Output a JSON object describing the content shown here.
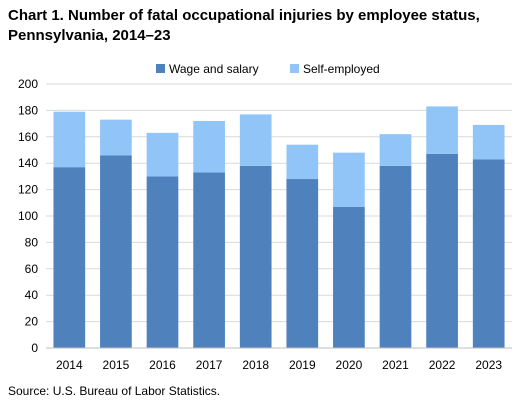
{
  "colors": {
    "wage": "#4f81bd",
    "self": "#92c5f7",
    "grid": "#d9d9d9"
  },
  "source": "Source: U.S. Bureau of Labor Statistics.",
  "chart_data": {
    "type": "bar",
    "stacked": true,
    "title": "Chart 1. Number of fatal occupational injuries by employee status, Pennsylvania, 2014–23",
    "categories": [
      "2014",
      "2015",
      "2016",
      "2017",
      "2018",
      "2019",
      "2020",
      "2021",
      "2022",
      "2023"
    ],
    "series": [
      {
        "name": "Wage and salary",
        "color": "#4f81bd",
        "values": [
          137,
          146,
          130,
          133,
          138,
          128,
          107,
          138,
          147,
          143
        ]
      },
      {
        "name": "Self-employed",
        "color": "#92c5f7",
        "values": [
          42,
          27,
          33,
          39,
          39,
          26,
          41,
          24,
          36,
          26
        ]
      }
    ],
    "ylim": [
      0,
      200
    ],
    "yticks": [
      0,
      20,
      40,
      60,
      80,
      100,
      120,
      140,
      160,
      180,
      200
    ],
    "grid": true,
    "legend": "top"
  }
}
